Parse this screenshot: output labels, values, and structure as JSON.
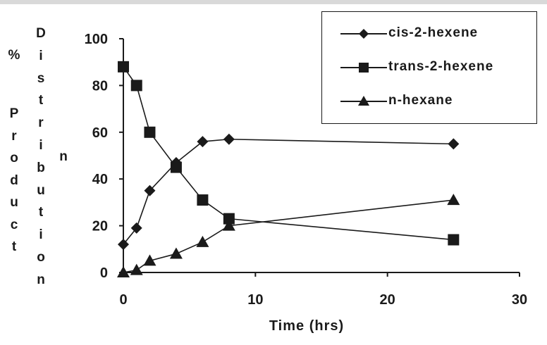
{
  "chart_data": {
    "type": "line",
    "title": "",
    "xlabel": "Time (hrs)",
    "ylabel_outer": "% Product",
    "ylabel_inner": "Distribution",
    "xlim": [
      0,
      30
    ],
    "ylim": [
      0,
      100
    ],
    "x_ticks": [
      "0",
      "10",
      "20",
      "30"
    ],
    "y_ticks": [
      "0",
      "20",
      "40",
      "60",
      "80",
      "100"
    ],
    "grid": false,
    "legend_position": "top-right",
    "series": [
      {
        "name": "cis-2-hexene",
        "marker": "diamond",
        "x": [
          0,
          1,
          2,
          4,
          6,
          8,
          25
        ],
        "y": [
          12,
          19,
          35,
          47,
          56,
          57,
          55
        ]
      },
      {
        "name": "trans-2-hexene",
        "marker": "square",
        "x": [
          0,
          1,
          2,
          4,
          6,
          8,
          25
        ],
        "y": [
          88,
          80,
          60,
          45,
          31,
          23,
          14
        ]
      },
      {
        "name": "n-hexane",
        "marker": "triangle",
        "x": [
          0,
          1,
          2,
          4,
          6,
          8,
          25
        ],
        "y": [
          0,
          1,
          5,
          8,
          13,
          20,
          31
        ]
      }
    ]
  }
}
